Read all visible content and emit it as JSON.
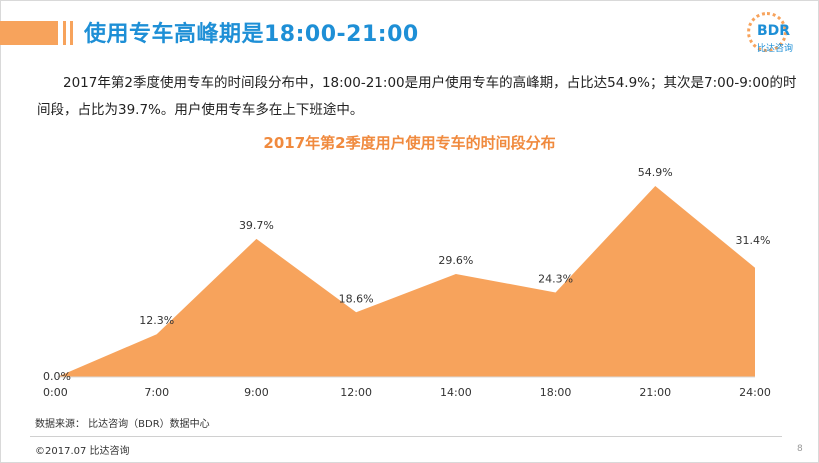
{
  "header": {
    "title": "使用专车高峰期是18:00-21:00",
    "logo_text": "BDR",
    "logo_sub": "比达咨询"
  },
  "intro": {
    "paragraph": "2017年第2季度使用专车的时间段分布中，18:00-21:00是用户使用专车的高峰期，占比达54.9%；其次是7:00-9:00的时间段，占比为39.7%。用户使用专车多在上下班途中。"
  },
  "chart_data": {
    "type": "area",
    "title": "2017年第2季度用户使用专车的时间段分布",
    "categories": [
      "0:00",
      "7:00",
      "9:00",
      "12:00",
      "14:00",
      "18:00",
      "21:00",
      "24:00"
    ],
    "values": [
      0.0,
      12.3,
      39.7,
      18.6,
      29.6,
      24.3,
      54.9,
      31.4
    ],
    "data_labels": [
      "0.0%",
      "12.3%",
      "39.7%",
      "18.6%",
      "29.6%",
      "24.3%",
      "54.9%",
      "31.4%"
    ],
    "ylim": [
      0,
      60
    ],
    "grid": false,
    "fill_color": "#f7a35c"
  },
  "footer": {
    "source": "数据来源：  比达咨询（BDR）数据中心",
    "copyright": "©2017.07    比达咨询",
    "page_number": "8"
  }
}
